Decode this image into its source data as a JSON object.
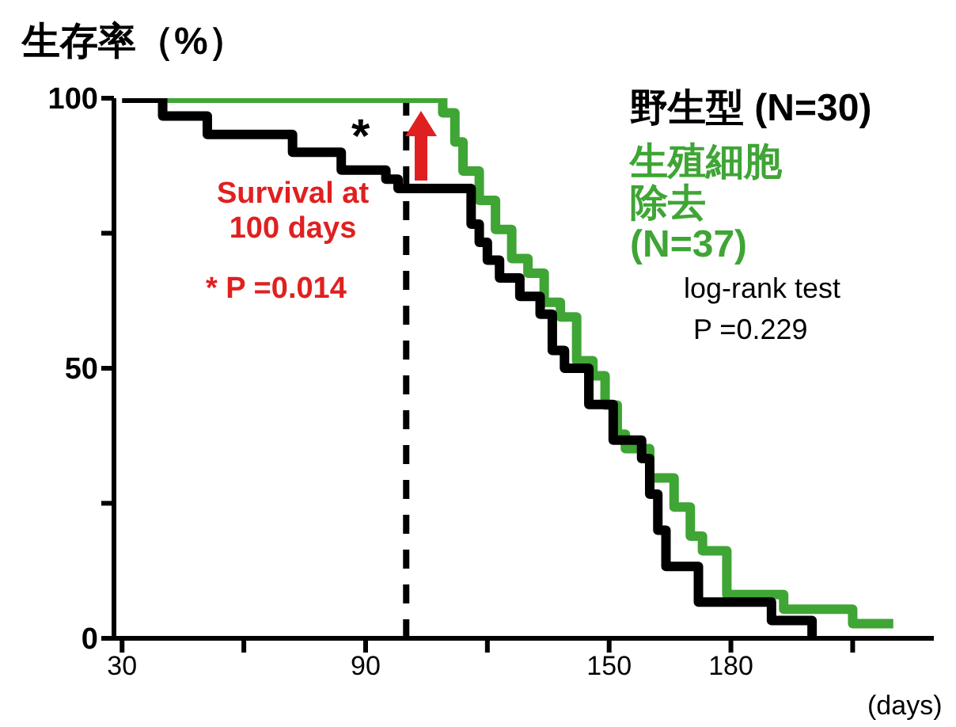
{
  "chart_data": {
    "type": "step",
    "ylabel": "生存率（%）",
    "xlabel": "(days)",
    "xlim": [
      28,
      230
    ],
    "xticks": [
      30,
      {
        "value": 60,
        "label": null
      },
      90,
      {
        "value": 120,
        "label": null
      },
      150,
      180,
      {
        "value": 210,
        "label": null
      }
    ],
    "ylim": [
      0,
      100
    ],
    "yticks": [
      0,
      {
        "value": 25,
        "label": null
      },
      50,
      {
        "value": 75,
        "label": null
      },
      100
    ],
    "legend": "top right",
    "series": [
      {
        "name": "野生型 (N=30)",
        "color": "#000000",
        "x": [
          30,
          40,
          51,
          72,
          84,
          95,
          98,
          116,
          118,
          120,
          123,
          128,
          133,
          136,
          139,
          145,
          151,
          158,
          160,
          162,
          164,
          172,
          190,
          200
        ],
        "values": [
          100,
          96.7,
          93.3,
          90,
          86.7,
          85,
          83.3,
          76.7,
          73.3,
          70,
          66.7,
          63.3,
          60,
          53.3,
          50,
          43.3,
          36.7,
          33.3,
          26.7,
          20,
          13.3,
          6.7,
          3.3,
          0
        ]
      },
      {
        "name": "生殖細胞除去(N=37)",
        "color": "#3fa535",
        "x": [
          41,
          109,
          112,
          114,
          118,
          122,
          126,
          130,
          134,
          138,
          142,
          146,
          149,
          152,
          154,
          160,
          166,
          170,
          173,
          179,
          193,
          210,
          220
        ],
        "values": [
          100,
          97.3,
          91.9,
          86.5,
          81.1,
          75.7,
          70.3,
          67.6,
          62.2,
          59.5,
          51.4,
          48.6,
          43.2,
          37.8,
          35.1,
          29.7,
          24.3,
          18.9,
          16.2,
          8.1,
          5.4,
          2.7,
          2.7
        ]
      }
    ],
    "ref_lines": [
      {
        "axis": "x",
        "value": 100,
        "color": "#000000",
        "line_style": "dashed"
      }
    ],
    "annotations": [
      "*",
      "Survival at 100 days",
      "* P =0.014",
      "log-rank test",
      "P =0.229"
    ]
  }
}
